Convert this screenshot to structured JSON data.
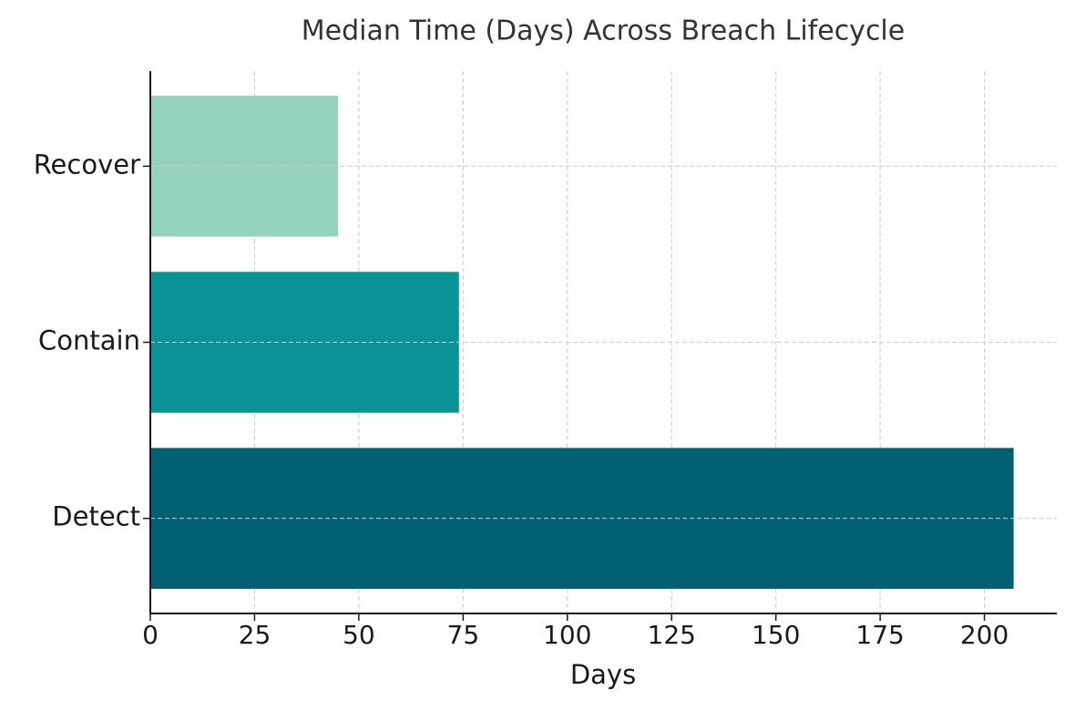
{
  "chart_data": {
    "type": "barh",
    "title": "Median Time (Days) Across Breach Lifecycle",
    "xlabel": "Days",
    "categories": [
      "Detect",
      "Contain",
      "Recover"
    ],
    "values": [
      207,
      74,
      45
    ],
    "colors": [
      "#005f73",
      "#0a9396",
      "#94d2bd"
    ],
    "xlim": [
      0,
      217.35
    ],
    "xticks": [
      0,
      25,
      50,
      75,
      100,
      125,
      150,
      175,
      200
    ],
    "grid": true
  }
}
